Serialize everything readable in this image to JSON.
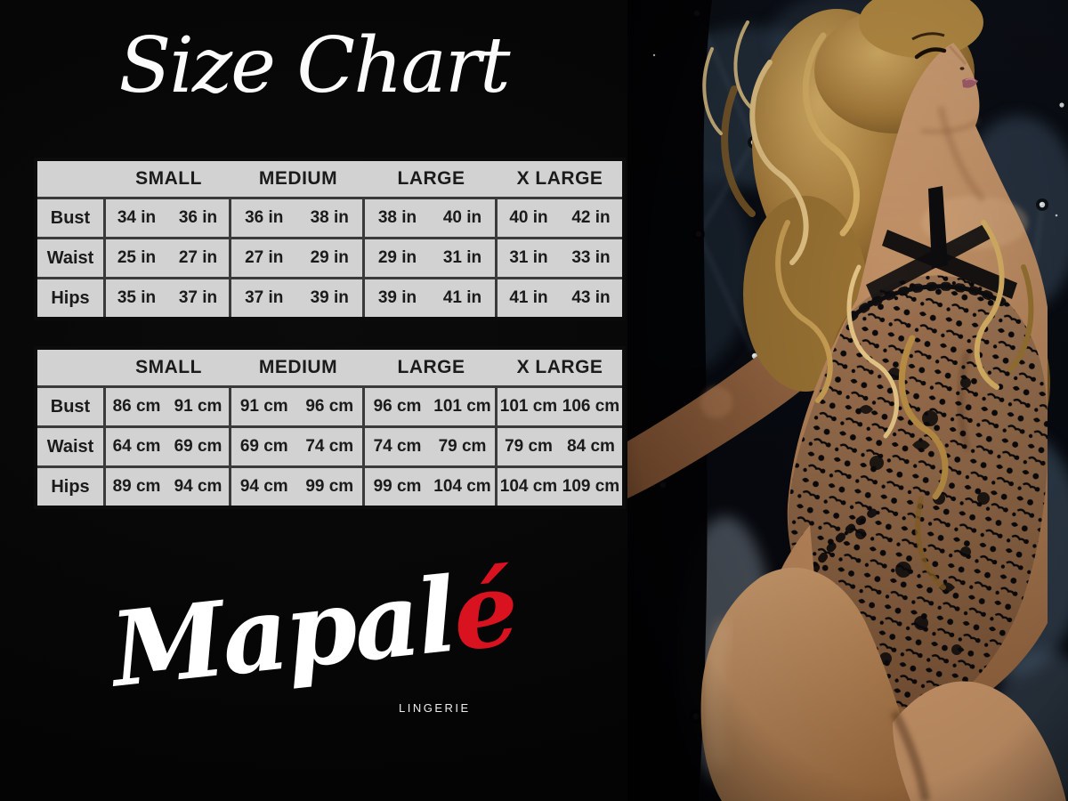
{
  "page": {
    "title": "Size Chart"
  },
  "colors": {
    "accent_red": "#d9121f",
    "table_bg": "#d2d2d2",
    "table_line": "#3a3a3a",
    "table_text": "#1b1b1b",
    "page_bg": "#050505"
  },
  "brand": {
    "name_prefix": "Mapal",
    "accent_letter": "é",
    "subtitle": "LINGERIE"
  },
  "tables": {
    "inches": {
      "sizes": [
        "SMALL",
        "MEDIUM",
        "LARGE",
        "X LARGE"
      ],
      "rows": [
        {
          "label": "Bust",
          "values": [
            [
              "34 in",
              "36 in"
            ],
            [
              "36 in",
              "38 in"
            ],
            [
              "38 in",
              "40 in"
            ],
            [
              "40 in",
              "42 in"
            ]
          ]
        },
        {
          "label": "Waist",
          "values": [
            [
              "25 in",
              "27 in"
            ],
            [
              "27 in",
              "29 in"
            ],
            [
              "29 in",
              "31 in"
            ],
            [
              "31 in",
              "33 in"
            ]
          ]
        },
        {
          "label": "Hips",
          "values": [
            [
              "35 in",
              "37 in"
            ],
            [
              "37 in",
              "39 in"
            ],
            [
              "39 in",
              "41 in"
            ],
            [
              "41 in",
              "43 in"
            ]
          ]
        }
      ]
    },
    "centimeters": {
      "sizes": [
        "SMALL",
        "MEDIUM",
        "LARGE",
        "X LARGE"
      ],
      "rows": [
        {
          "label": "Bust",
          "values": [
            [
              "86 cm",
              "91 cm"
            ],
            [
              "91 cm",
              "96 cm"
            ],
            [
              "96 cm",
              "101 cm"
            ],
            [
              "101 cm",
              "106 cm"
            ]
          ]
        },
        {
          "label": "Waist",
          "values": [
            [
              "64 cm",
              "69 cm"
            ],
            [
              "69 cm",
              "74 cm"
            ],
            [
              "74 cm",
              "79 cm"
            ],
            [
              "79 cm",
              "84 cm"
            ]
          ]
        },
        {
          "label": "Hips",
          "values": [
            [
              "89 cm",
              "94 cm"
            ],
            [
              "94 cm",
              "99 cm"
            ],
            [
              "99 cm",
              "104 cm"
            ],
            [
              "104 cm",
              "109 cm"
            ]
          ]
        }
      ]
    }
  },
  "photo": {
    "alt": "model-in-black-lace-bodysuit-against-dark-tufted-wall"
  }
}
